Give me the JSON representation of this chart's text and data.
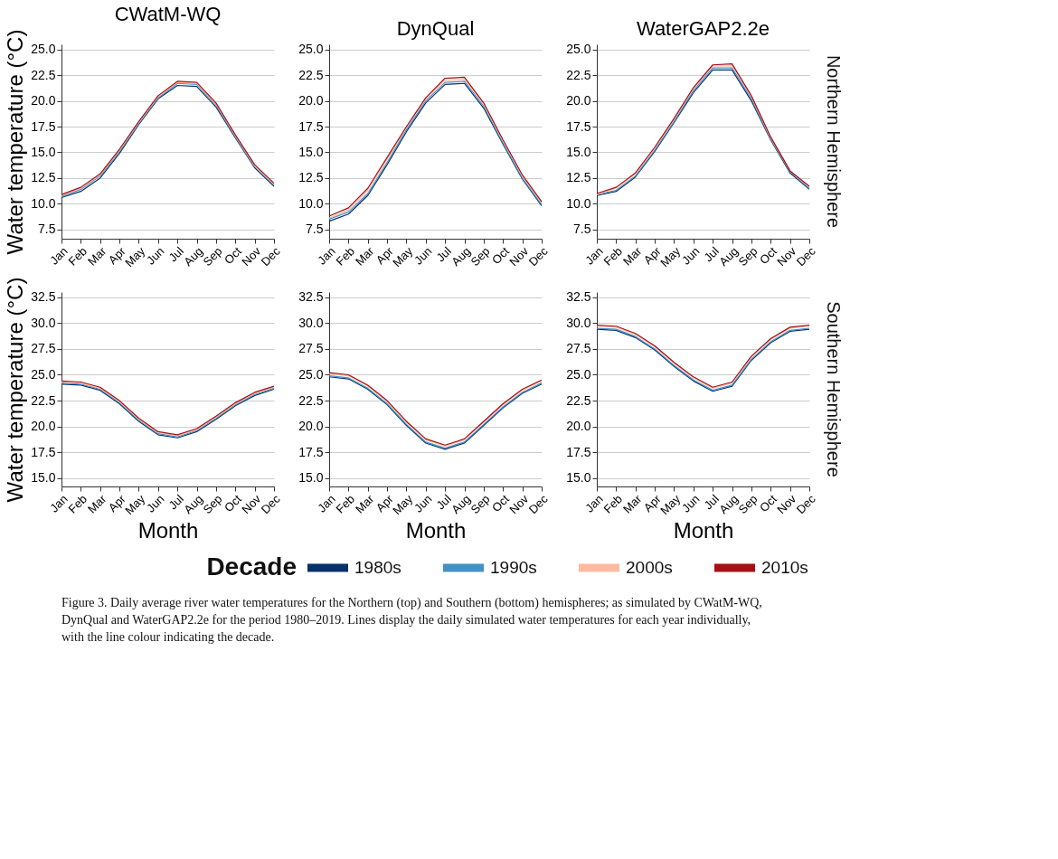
{
  "chart_data": [
    {
      "type": "line",
      "title": "CWatM-WQ",
      "legend": "bottom",
      "legend_title": "Decade",
      "ylabel": "Water temperature (°C)",
      "categories": [
        "Jan",
        "Feb",
        "Mar",
        "Apr",
        "May",
        "Jun",
        "Jul",
        "Aug",
        "Sep",
        "Oct",
        "Nov",
        "Dec"
      ],
      "ylim": [
        6.6,
        25.5
      ],
      "yticks": [
        {
          "value": 7.5,
          "label": "7.5"
        },
        {
          "value": 10,
          "label": "10.0"
        },
        {
          "value": 12.5,
          "label": "12.5"
        },
        {
          "value": 15,
          "label": "15.0"
        },
        {
          "value": 17.5,
          "label": "17.5"
        },
        {
          "value": 20,
          "label": "20.0"
        },
        {
          "value": 22.5,
          "label": "22.5"
        },
        {
          "value": 25,
          "label": "25.0"
        }
      ],
      "grid": "y",
      "marker": "none",
      "line_style": "solid",
      "series": [
        {
          "name": "1980s",
          "color": "#08306b",
          "values": [
            10.6,
            11.2,
            12.5,
            14.9,
            17.7,
            20.2,
            21.5,
            21.4,
            19.4,
            16.4,
            13.5,
            11.7
          ]
        },
        {
          "name": "1990s",
          "color": "#4292c6",
          "values": [
            10.7,
            11.4,
            12.7,
            15.1,
            17.8,
            20.3,
            21.7,
            21.6,
            19.6,
            16.5,
            13.6,
            11.8
          ]
        },
        {
          "name": "2000s",
          "color": "#fcbba1",
          "values": [
            10.8,
            11.5,
            12.8,
            15.2,
            17.9,
            20.4,
            21.8,
            21.7,
            19.7,
            16.6,
            13.7,
            11.9
          ]
        },
        {
          "name": "2010s",
          "color": "#a50f15",
          "values": [
            10.9,
            11.6,
            12.9,
            15.3,
            18.0,
            20.5,
            21.9,
            21.8,
            19.8,
            16.7,
            13.8,
            12.0
          ]
        }
      ]
    },
    {
      "type": "line",
      "title": "DynQual",
      "categories": [
        "Jan",
        "Feb",
        "Mar",
        "Apr",
        "May",
        "Jun",
        "Jul",
        "Aug",
        "Sep",
        "Oct",
        "Nov",
        "Dec"
      ],
      "ylim": [
        6.6,
        25.5
      ],
      "yticks": [
        {
          "value": 7.5,
          "label": "7.5"
        },
        {
          "value": 10,
          "label": "10.0"
        },
        {
          "value": 12.5,
          "label": "12.5"
        },
        {
          "value": 15,
          "label": "15.0"
        },
        {
          "value": 17.5,
          "label": "17.5"
        },
        {
          "value": 20,
          "label": "20.0"
        },
        {
          "value": 22.5,
          "label": "22.5"
        },
        {
          "value": 25,
          "label": "25.0"
        }
      ],
      "grid": "y",
      "marker": "none",
      "line_style": "solid",
      "series": [
        {
          "color": "#08306b",
          "values": [
            8.3,
            9.0,
            10.8,
            13.8,
            17.0,
            19.8,
            21.6,
            21.7,
            19.3,
            15.8,
            12.4,
            9.8
          ]
        },
        {
          "color": "#4292c6",
          "values": [
            8.5,
            9.2,
            11.0,
            14.0,
            17.2,
            20.0,
            21.8,
            21.9,
            19.5,
            15.9,
            12.5,
            9.9
          ]
        },
        {
          "color": "#fcbba1",
          "values": [
            8.6,
            9.4,
            11.3,
            14.3,
            17.4,
            20.2,
            22.0,
            22.1,
            19.7,
            16.1,
            12.7,
            10.1
          ]
        },
        {
          "color": "#a50f15",
          "values": [
            8.8,
            9.6,
            11.5,
            14.5,
            17.5,
            20.3,
            22.2,
            22.3,
            19.8,
            16.2,
            12.8,
            10.2
          ]
        }
      ]
    },
    {
      "type": "line",
      "title": "WaterGAP2.2e",
      "annotations": [
        "Northern Hemisphere"
      ],
      "categories": [
        "Jan",
        "Feb",
        "Mar",
        "Apr",
        "May",
        "Jun",
        "Jul",
        "Aug",
        "Sep",
        "Oct",
        "Nov",
        "Dec"
      ],
      "ylim": [
        6.6,
        25.5
      ],
      "yticks": [
        {
          "value": 7.5,
          "label": "7.5"
        },
        {
          "value": 10,
          "label": "10.0"
        },
        {
          "value": 12.5,
          "label": "12.5"
        },
        {
          "value": 15,
          "label": "15.0"
        },
        {
          "value": 17.5,
          "label": "17.5"
        },
        {
          "value": 20,
          "label": "20.0"
        },
        {
          "value": 22.5,
          "label": "22.5"
        },
        {
          "value": 25,
          "label": "25.0"
        }
      ],
      "grid": "y",
      "marker": "none",
      "line_style": "solid",
      "series": [
        {
          "color": "#08306b",
          "values": [
            10.8,
            11.2,
            12.6,
            15.1,
            17.9,
            20.8,
            23.0,
            23.0,
            20.0,
            16.2,
            13.0,
            11.4
          ]
        },
        {
          "color": "#4292c6",
          "values": [
            10.9,
            11.3,
            12.7,
            15.2,
            18.0,
            21.0,
            23.2,
            23.2,
            20.2,
            16.3,
            13.1,
            11.5
          ]
        },
        {
          "color": "#fcbba1",
          "values": [
            10.9,
            11.5,
            12.9,
            15.4,
            18.2,
            21.2,
            23.4,
            23.4,
            20.4,
            16.4,
            13.2,
            11.6
          ]
        },
        {
          "color": "#a50f15",
          "values": [
            11.0,
            11.6,
            13.0,
            15.5,
            18.3,
            21.3,
            23.5,
            23.6,
            20.5,
            16.5,
            13.2,
            11.7
          ]
        }
      ]
    },
    {
      "type": "line",
      "ylabel": "Water temperature (°C)",
      "xlabel": "Month",
      "categories": [
        "Jan",
        "Feb",
        "Mar",
        "Apr",
        "May",
        "Jun",
        "Jul",
        "Aug",
        "Sep",
        "Oct",
        "Nov",
        "Dec"
      ],
      "ylim": [
        14.2,
        33.0
      ],
      "yticks": [
        {
          "value": 15,
          "label": "15.0"
        },
        {
          "value": 17.5,
          "label": "17.5"
        },
        {
          "value": 20,
          "label": "20.0"
        },
        {
          "value": 22.5,
          "label": "22.5"
        },
        {
          "value": 25,
          "label": "25.0"
        },
        {
          "value": 27.5,
          "label": "27.5"
        },
        {
          "value": 30,
          "label": "30.0"
        },
        {
          "value": 32.5,
          "label": "32.5"
        }
      ],
      "grid": "y",
      "marker": "none",
      "line_style": "solid",
      "series": [
        {
          "color": "#08306b",
          "values": [
            24.1,
            24.0,
            23.5,
            22.2,
            20.5,
            19.2,
            18.9,
            19.5,
            20.7,
            22.0,
            23.0,
            23.6
          ]
        },
        {
          "color": "#4292c6",
          "values": [
            24.2,
            24.1,
            23.6,
            22.3,
            20.6,
            19.3,
            19.0,
            19.6,
            20.8,
            22.1,
            23.1,
            23.7
          ]
        },
        {
          "color": "#fcbba1",
          "values": [
            24.3,
            24.2,
            23.7,
            22.4,
            20.7,
            19.4,
            19.1,
            19.7,
            20.9,
            22.2,
            23.2,
            23.8
          ]
        },
        {
          "color": "#a50f15",
          "values": [
            24.4,
            24.3,
            23.8,
            22.5,
            20.8,
            19.5,
            19.2,
            19.8,
            21.0,
            22.3,
            23.3,
            23.9
          ]
        }
      ]
    },
    {
      "type": "line",
      "xlabel": "Month",
      "categories": [
        "Jan",
        "Feb",
        "Mar",
        "Apr",
        "May",
        "Jun",
        "Jul",
        "Aug",
        "Sep",
        "Oct",
        "Nov",
        "Dec"
      ],
      "ylim": [
        14.2,
        33.0
      ],
      "yticks": [
        {
          "value": 15,
          "label": "15.0"
        },
        {
          "value": 17.5,
          "label": "17.5"
        },
        {
          "value": 20,
          "label": "20.0"
        },
        {
          "value": 22.5,
          "label": "22.5"
        },
        {
          "value": 25,
          "label": "25.0"
        },
        {
          "value": 27.5,
          "label": "27.5"
        },
        {
          "value": 30,
          "label": "30.0"
        },
        {
          "value": 32.5,
          "label": "32.5"
        }
      ],
      "grid": "y",
      "marker": "none",
      "line_style": "solid",
      "series": [
        {
          "color": "#08306b",
          "values": [
            24.8,
            24.6,
            23.6,
            22.1,
            20.1,
            18.4,
            17.8,
            18.4,
            20.1,
            21.8,
            23.2,
            24.1
          ]
        },
        {
          "color": "#4292c6",
          "values": [
            24.9,
            24.7,
            23.7,
            22.2,
            20.2,
            18.5,
            17.9,
            18.5,
            20.2,
            21.9,
            23.3,
            24.2
          ]
        },
        {
          "color": "#fcbba1",
          "values": [
            25.1,
            24.9,
            23.9,
            22.4,
            20.4,
            18.7,
            18.1,
            18.7,
            20.4,
            22.1,
            23.5,
            24.4
          ]
        },
        {
          "color": "#a50f15",
          "values": [
            25.2,
            25.0,
            24.0,
            22.5,
            20.5,
            18.8,
            18.2,
            18.8,
            20.5,
            22.2,
            23.6,
            24.5
          ]
        }
      ]
    },
    {
      "type": "line",
      "xlabel": "Month",
      "annotations": [
        "Southern Hemisphere",
        "Figure 3. Daily average river water temperatures for the Northern (top) and Southern (bottom) hemispheres; as simulated by CWatM-WQ, DynQual and WaterGAP2.2e for the period 1980–2019. Lines display the daily simulated water temperatures for each year individually, with the line colour indicating the decade."
      ],
      "categories": [
        "Jan",
        "Feb",
        "Mar",
        "Apr",
        "May",
        "Jun",
        "Jul",
        "Aug",
        "Sep",
        "Oct",
        "Nov",
        "Dec"
      ],
      "ylim": [
        14.2,
        33.0
      ],
      "yticks": [
        {
          "value": 15,
          "label": "15.0"
        },
        {
          "value": 17.5,
          "label": "17.5"
        },
        {
          "value": 20,
          "label": "20.0"
        },
        {
          "value": 22.5,
          "label": "22.5"
        },
        {
          "value": 25,
          "label": "25.0"
        },
        {
          "value": 27.5,
          "label": "27.5"
        },
        {
          "value": 30,
          "label": "30.0"
        },
        {
          "value": 32.5,
          "label": "32.5"
        }
      ],
      "grid": "y",
      "marker": "none",
      "line_style": "solid",
      "series": [
        {
          "color": "#08306b",
          "values": [
            29.4,
            29.3,
            28.6,
            27.4,
            25.8,
            24.4,
            23.4,
            23.9,
            26.4,
            28.1,
            29.2,
            29.4
          ]
        },
        {
          "color": "#4292c6",
          "values": [
            29.5,
            29.4,
            28.7,
            27.5,
            25.9,
            24.5,
            23.5,
            24.0,
            26.5,
            28.2,
            29.3,
            29.5
          ]
        },
        {
          "color": "#fcbba1",
          "values": [
            29.7,
            29.6,
            28.9,
            27.7,
            26.1,
            24.7,
            23.7,
            24.2,
            26.7,
            28.4,
            29.5,
            29.7
          ]
        },
        {
          "color": "#a50f15",
          "values": [
            29.8,
            29.7,
            29.0,
            27.8,
            26.2,
            24.8,
            23.8,
            24.3,
            26.8,
            28.5,
            29.6,
            29.8
          ]
        }
      ]
    }
  ]
}
